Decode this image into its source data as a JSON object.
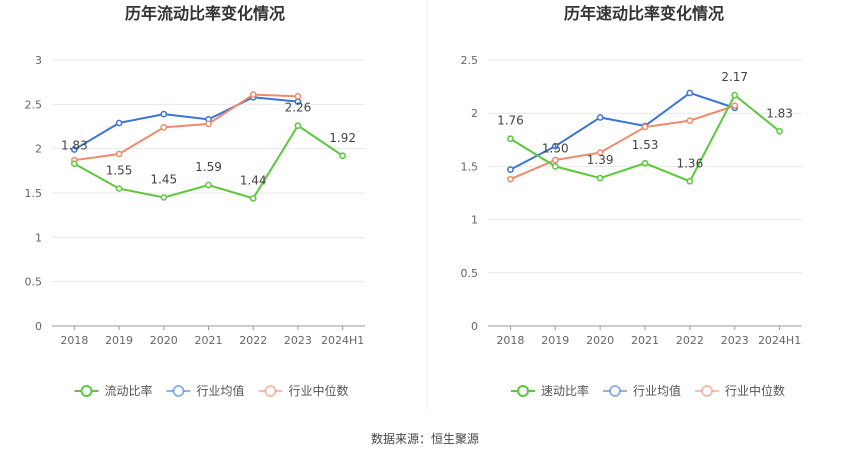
{
  "source_text": "数据来源：恒生聚源",
  "chart_data": [
    {
      "type": "line",
      "title": "历年流动比率变化情况",
      "categories": [
        "2018",
        "2019",
        "2020",
        "2021",
        "2022",
        "2023",
        "2024H1"
      ],
      "ylim": [
        0,
        3
      ],
      "yticks": [
        "0",
        "0.5",
        "1",
        "1.5",
        "2",
        "2.5",
        "3"
      ],
      "ytick_values": [
        0,
        0.5,
        1,
        1.5,
        2,
        2.5,
        3
      ],
      "grid": true,
      "legend_position": "bottom",
      "series": [
        {
          "name": "流动比率",
          "color": "#5cc83c",
          "values": [
            1.83,
            1.55,
            1.45,
            1.59,
            1.44,
            2.26,
            1.92
          ],
          "labels": [
            "1.83",
            "1.55",
            "1.45",
            "1.59",
            "1.44",
            "2.26",
            "1.92"
          ]
        },
        {
          "name": "行业均值",
          "color": "#3b74d8",
          "values": [
            1.99,
            2.29,
            2.39,
            2.33,
            2.58,
            2.53,
            null
          ]
        },
        {
          "name": "行业中位数",
          "color": "#f18a6a",
          "values": [
            1.87,
            1.94,
            2.24,
            2.28,
            2.61,
            2.59,
            null
          ]
        }
      ]
    },
    {
      "type": "line",
      "title": "历年速动比率变化情况",
      "categories": [
        "2018",
        "2019",
        "2020",
        "2021",
        "2022",
        "2023",
        "2024H1"
      ],
      "ylim": [
        0,
        2.5
      ],
      "yticks": [
        "0",
        "0.5",
        "1",
        "1.5",
        "2",
        "2.5"
      ],
      "ytick_values": [
        0,
        0.5,
        1,
        1.5,
        2,
        2.5
      ],
      "grid": true,
      "legend_position": "bottom",
      "series": [
        {
          "name": "速动比率",
          "color": "#5cc83c",
          "values": [
            1.76,
            1.5,
            1.39,
            1.53,
            1.36,
            2.17,
            1.83
          ],
          "labels": [
            "1.76",
            "1.50",
            "1.39",
            "1.53",
            "1.36",
            "2.17",
            "1.83"
          ]
        },
        {
          "name": "行业均值",
          "color": "#3b74d8",
          "values": [
            1.47,
            1.69,
            1.96,
            1.88,
            2.19,
            2.05,
            null
          ]
        },
        {
          "name": "行业中位数",
          "color": "#f18a6a",
          "values": [
            1.38,
            1.56,
            1.63,
            1.87,
            1.93,
            2.07,
            null
          ]
        }
      ]
    }
  ]
}
